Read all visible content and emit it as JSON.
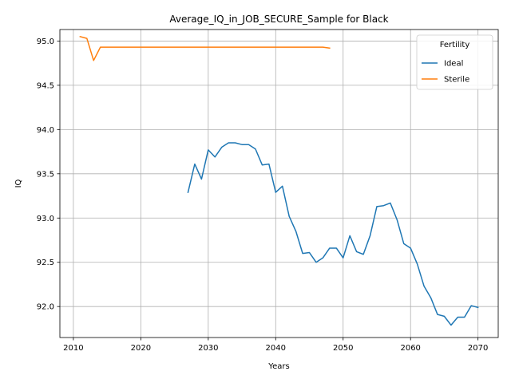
{
  "chart_data": {
    "type": "line",
    "title": "Average_IQ_in_JOB_SECURE_Sample for Black",
    "xlabel": "Years",
    "ylabel": "IQ",
    "xlim": [
      2008,
      2073
    ],
    "ylim": [
      91.65,
      95.13
    ],
    "xticks": [
      2010,
      2020,
      2030,
      2040,
      2050,
      2060,
      2070
    ],
    "yticks": [
      92.0,
      92.5,
      93.0,
      93.5,
      94.0,
      94.5,
      95.0
    ],
    "grid": true,
    "legend": {
      "title": "Fertility",
      "placement": "top-right"
    },
    "series": [
      {
        "name": "Ideal",
        "color": "#1f77b4",
        "x": [
          2027,
          2028,
          2029,
          2030,
          2031,
          2032,
          2033,
          2034,
          2035,
          2036,
          2037,
          2038,
          2039,
          2040,
          2041,
          2042,
          2043,
          2044,
          2045,
          2046,
          2047,
          2048,
          2049,
          2050,
          2051,
          2052,
          2053,
          2054,
          2055,
          2056,
          2057,
          2058,
          2059,
          2060,
          2061,
          2062,
          2063,
          2064,
          2065,
          2066,
          2067,
          2068,
          2069,
          2070
        ],
        "y": [
          93.29,
          93.61,
          93.44,
          93.77,
          93.69,
          93.8,
          93.85,
          93.85,
          93.83,
          93.83,
          93.78,
          93.6,
          93.61,
          93.29,
          93.36,
          93.02,
          92.85,
          92.6,
          92.61,
          92.5,
          92.55,
          92.66,
          92.66,
          92.55,
          92.8,
          92.62,
          92.59,
          92.8,
          93.13,
          93.14,
          93.17,
          92.98,
          92.71,
          92.66,
          92.48,
          92.23,
          92.1,
          91.91,
          91.89,
          91.79,
          91.88,
          91.88,
          92.01,
          91.99
        ]
      },
      {
        "name": "Sterile",
        "color": "#ff7f0e",
        "x": [
          2011,
          2012,
          2013,
          2014,
          2015,
          2016,
          2017,
          2018,
          2019,
          2020,
          2021,
          2022,
          2023,
          2024,
          2025,
          2026,
          2027,
          2028,
          2029,
          2030,
          2031,
          2032,
          2033,
          2034,
          2035,
          2036,
          2037,
          2038,
          2039,
          2040,
          2041,
          2042,
          2043,
          2044,
          2045,
          2046,
          2047,
          2048
        ],
        "y": [
          95.05,
          95.03,
          94.78,
          94.93,
          94.93,
          94.93,
          94.93,
          94.93,
          94.93,
          94.93,
          94.93,
          94.93,
          94.93,
          94.93,
          94.93,
          94.93,
          94.93,
          94.93,
          94.93,
          94.93,
          94.93,
          94.93,
          94.93,
          94.93,
          94.93,
          94.93,
          94.93,
          94.93,
          94.93,
          94.93,
          94.93,
          94.93,
          94.93,
          94.93,
          94.93,
          94.93,
          94.93,
          94.92
        ]
      }
    ]
  }
}
